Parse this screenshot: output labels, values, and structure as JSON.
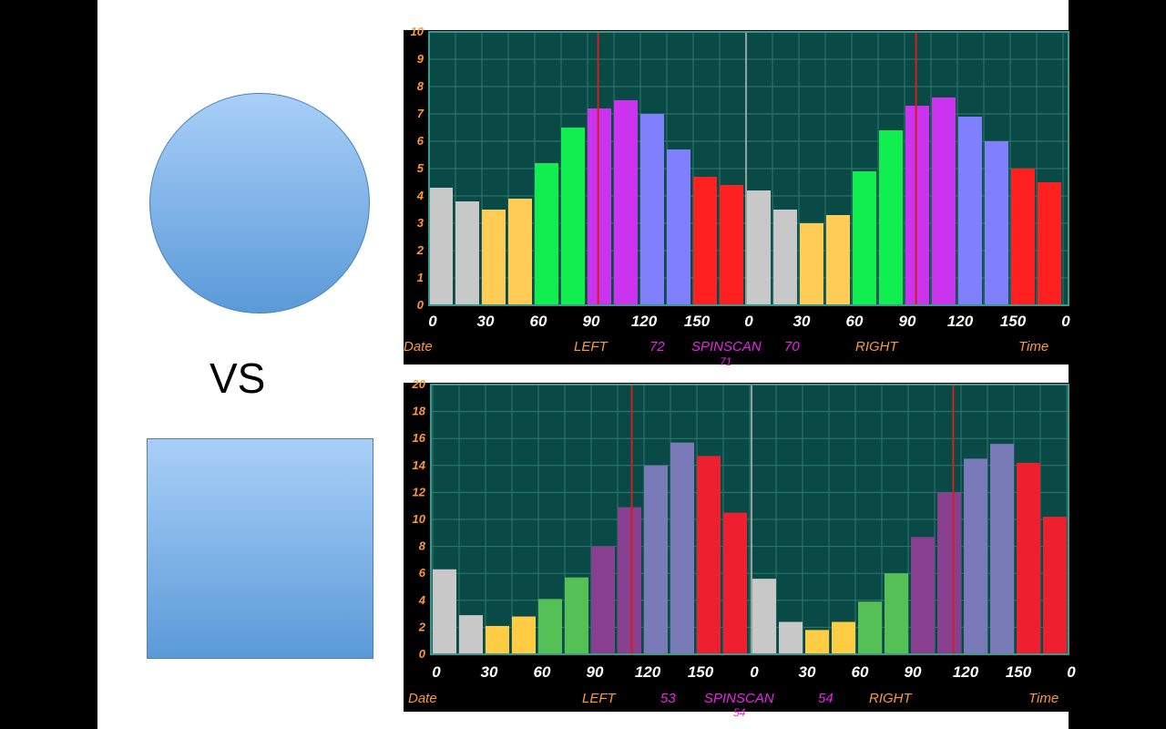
{
  "slide": {
    "vs_label": "VS"
  },
  "chart_data": [
    {
      "type": "bar",
      "name": "spinscan-top",
      "ylim": [
        0,
        10
      ],
      "yticks": [
        "0",
        "1",
        "2",
        "3",
        "4",
        "5",
        "6",
        "7",
        "8",
        "9",
        "10"
      ],
      "xticks_left": [
        "0",
        "30",
        "60",
        "90",
        "120",
        "150"
      ],
      "xticks_right": [
        "0",
        "30",
        "60",
        "90",
        "120",
        "150",
        "0"
      ],
      "left_values": [
        4.3,
        3.8,
        3.5,
        3.9,
        5.2,
        6.5,
        7.2,
        7.5,
        7.0,
        5.7,
        4.7,
        4.4
      ],
      "right_values": [
        4.2,
        3.5,
        3.0,
        3.3,
        4.9,
        6.4,
        7.3,
        7.6,
        6.9,
        6.0,
        5.0,
        4.5
      ],
      "left_marker_deg": 96,
      "right_marker_deg": 96,
      "footer": {
        "date": "Date",
        "left": "LEFT",
        "left_val": "72",
        "spinscan": "SPINSCAN",
        "spinscan_val": "70",
        "right": "RIGHT",
        "time": "Time",
        "spinscan_sub": "71"
      }
    },
    {
      "type": "bar",
      "name": "spinscan-bottom",
      "ylim": [
        0,
        20
      ],
      "yticks": [
        "0",
        "2",
        "4",
        "6",
        "8",
        "10",
        "12",
        "14",
        "16",
        "18",
        "20"
      ],
      "xticks_left": [
        "0",
        "30",
        "60",
        "90",
        "120",
        "150"
      ],
      "xticks_right": [
        "0",
        "30",
        "60",
        "90",
        "120",
        "150",
        "0"
      ],
      "left_values": [
        6.3,
        2.9,
        2.1,
        2.8,
        4.1,
        5.7,
        8.0,
        10.9,
        14.0,
        15.7,
        14.7,
        10.5
      ],
      "right_values": [
        5.6,
        2.4,
        1.8,
        2.4,
        3.9,
        6.0,
        8.7,
        12.0,
        14.5,
        15.6,
        14.2,
        10.2
      ],
      "left_marker_deg": 113,
      "right_marker_deg": 114,
      "footer": {
        "date": "Date",
        "left": "LEFT",
        "left_val": "53",
        "spinscan": "SPINSCAN",
        "spinscan_val": "54",
        "right": "RIGHT",
        "time": "Time",
        "spinscan_sub": "54"
      }
    }
  ],
  "colors": {
    "plot_bg": "#0a4a46",
    "grid": "#2d7a6e",
    "tick_orange": "#ff9a33",
    "tick_white": "#ffffff",
    "marker": "#d02020",
    "top_bars": [
      "#c8c8c8",
      "#c8c8c8",
      "#ffcc55",
      "#ffcc55",
      "#10ee50",
      "#10ee50",
      "#cc33ee",
      "#cc33ee",
      "#8080ff",
      "#8080ff",
      "#ff2020",
      "#ff2020"
    ],
    "bottom_bars": [
      "#c8c8c8",
      "#c8c8c8",
      "#ffcc44",
      "#ffcc44",
      "#55c055",
      "#55c055",
      "#8a4090",
      "#8a4090",
      "#7a7ab8",
      "#7a7ab8",
      "#ee2030",
      "#ee2030"
    ]
  }
}
